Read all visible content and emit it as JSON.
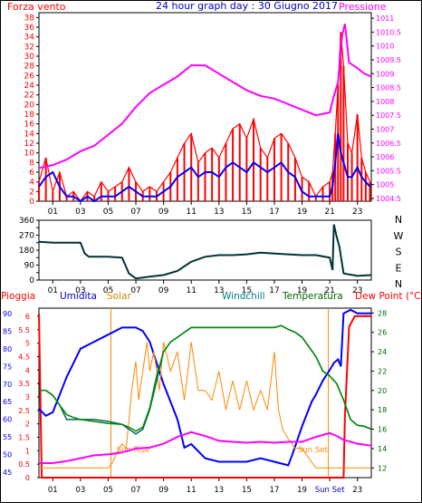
{
  "header": {
    "title": "24 hour graph day : 30 Giugno 2017",
    "left_label": "Forza vento",
    "right_label": "Pressione"
  },
  "colors": {
    "wind": "#ff0000",
    "gust": "#0000ff",
    "pressure": "#ff00ff",
    "direction": "#003333",
    "rain": "#ff0000",
    "humidity": "#0000ff",
    "solar": "#ff8800",
    "windchill": "#006666",
    "temperature": "#008800",
    "dewpoint": "#ff00ff",
    "humidity_label": "#0000cc",
    "solar_label": "#cc8800",
    "windchill_label": "#008080",
    "temperature_label": "#006600",
    "dewpoint_label": "#ff0000"
  },
  "chart_data": [
    {
      "type": "line",
      "name": "wind-pressure",
      "x_ticks": [
        "01",
        "03",
        "05",
        "07",
        "09",
        "11",
        "13",
        "15",
        "17",
        "19",
        "21",
        "23"
      ],
      "y_left_label": "Forza vento",
      "y_left_ticks": [
        0,
        2,
        4,
        6,
        8,
        10,
        12,
        14,
        16,
        18,
        20,
        22,
        24,
        26,
        28,
        30,
        32,
        34,
        36,
        38
      ],
      "y_left_lim": [
        0,
        39
      ],
      "y_right_label": "Pressione",
      "y_right_ticks": [
        1004.5,
        1005,
        1005.5,
        1006,
        1006.5,
        1007,
        1007.5,
        1008,
        1008.5,
        1009,
        1009.5,
        1010,
        1010.5,
        1011
      ],
      "y_right_lim": [
        1004.4,
        1011.2
      ],
      "series": [
        {
          "name": "Forza vento",
          "axis": "left",
          "x": [
            0,
            0.5,
            1,
            1.5,
            2,
            2.5,
            3,
            3.5,
            4,
            4.5,
            5,
            5.5,
            6,
            6.5,
            7,
            7.5,
            8,
            8.5,
            9,
            9.5,
            10,
            10.5,
            11,
            11.5,
            12,
            12.5,
            13,
            13.5,
            14,
            14.5,
            15,
            15.5,
            16,
            16.5,
            17,
            17.5,
            18,
            18.5,
            19,
            19.5,
            20,
            20.5,
            21,
            21.2,
            21.4,
            21.6,
            21.8,
            22,
            22.3,
            22.6,
            23,
            23.3,
            23.6,
            23.9
          ],
          "values": [
            4,
            9,
            2,
            6,
            1,
            2,
            0,
            2,
            1,
            4,
            2,
            3,
            4,
            7,
            4,
            2,
            3,
            2,
            4,
            6,
            9,
            12,
            14,
            8,
            10,
            11,
            9,
            12,
            15,
            16,
            13,
            17,
            11,
            9,
            13,
            14,
            12,
            9,
            5,
            4,
            1,
            3,
            4,
            6,
            14,
            24,
            35,
            28,
            12,
            10,
            18,
            9,
            6,
            4
          ]
        },
        {
          "name": "Raffica",
          "axis": "left",
          "x": [
            0,
            0.5,
            1,
            1.5,
            2,
            2.5,
            3,
            3.5,
            4,
            4.5,
            5,
            5.5,
            6,
            6.5,
            7,
            7.5,
            8,
            8.5,
            9,
            9.5,
            10,
            10.5,
            11,
            11.5,
            12,
            12.5,
            13,
            13.5,
            14,
            14.5,
            15,
            15.5,
            16,
            16.5,
            17,
            17.5,
            18,
            18.5,
            19,
            19.5,
            20,
            20.5,
            21,
            21.2,
            21.4,
            21.6,
            21.8,
            22,
            22.3,
            22.6,
            23,
            23.3,
            23.6,
            23.9
          ],
          "values": [
            3,
            5,
            6,
            3,
            1,
            1,
            0,
            1,
            0,
            1,
            1,
            1,
            2,
            3,
            2,
            1,
            1,
            1,
            2,
            3,
            5,
            6,
            7,
            5,
            6,
            6,
            5,
            7,
            8,
            7,
            6,
            8,
            7,
            6,
            7,
            8,
            6,
            5,
            2,
            1,
            1,
            1,
            1,
            3,
            8,
            14,
            10,
            8,
            5,
            5,
            7,
            5,
            4,
            3
          ]
        },
        {
          "name": "Pressione",
          "axis": "right",
          "x": [
            0,
            1,
            2,
            3,
            4,
            5,
            6,
            7,
            8,
            9,
            10,
            11,
            12,
            13,
            14,
            15,
            16,
            17,
            18,
            19,
            20,
            21,
            21.3,
            21.6,
            21.9,
            22.1,
            22.4,
            23,
            23.5,
            24
          ],
          "values": [
            1005.6,
            1005.7,
            1005.9,
            1006.2,
            1006.4,
            1006.8,
            1007.2,
            1007.8,
            1008.3,
            1008.6,
            1008.9,
            1009.3,
            1009.3,
            1009.0,
            1008.7,
            1008.4,
            1008.2,
            1008.1,
            1007.9,
            1007.7,
            1007.5,
            1007.6,
            1008.2,
            1008.7,
            1010.4,
            1010.8,
            1009.4,
            1009.2,
            1009.0,
            1008.9
          ]
        }
      ]
    },
    {
      "type": "line",
      "name": "wind-direction",
      "x_ticks": [
        "01",
        "03",
        "05",
        "07",
        "09",
        "11",
        "13",
        "15",
        "17",
        "19",
        "21",
        "23"
      ],
      "y_left_ticks": [
        0,
        45,
        90,
        135,
        180,
        225,
        270,
        315,
        360
      ],
      "y_left_lim": [
        0,
        360
      ],
      "y_right_ticks": [
        "N",
        "W",
        "S",
        "E",
        "N"
      ],
      "series": [
        {
          "name": "Direzione",
          "x": [
            0,
            1,
            2,
            3,
            3.3,
            3.6,
            4,
            5,
            6,
            6.5,
            7,
            7.5,
            8,
            9,
            10,
            11,
            12,
            13,
            14,
            15,
            16,
            17,
            18,
            19,
            20,
            21,
            21.2,
            21.3,
            21.5,
            21.7,
            22,
            23,
            24
          ],
          "values": [
            230,
            225,
            225,
            225,
            160,
            140,
            140,
            140,
            135,
            40,
            10,
            15,
            20,
            30,
            55,
            110,
            140,
            150,
            150,
            155,
            165,
            160,
            155,
            150,
            150,
            135,
            60,
            335,
            260,
            200,
            40,
            25,
            30
          ]
        }
      ]
    },
    {
      "type": "line",
      "name": "rain-humidity-temperature",
      "x_ticks": [
        "01",
        "03",
        "05",
        "07",
        "09",
        "11",
        "13",
        "15",
        "17",
        "19",
        "Sun Set",
        "23"
      ],
      "annotations": [
        "Sun Rise",
        "Sun Set"
      ],
      "y_rain_label": "Pioggia",
      "y_rain_ticks": [
        0,
        0.5,
        1,
        1.5,
        2,
        2.5,
        3,
        3.5,
        4,
        4.5,
        5,
        5.5,
        6
      ],
      "y_hum_label": "Umidita",
      "y_hum_ticks": [
        45,
        50,
        55,
        60,
        65,
        70,
        75,
        80,
        85,
        90
      ],
      "y_temp_label": "Temperatura",
      "y_temp_ticks": [
        12,
        14,
        16,
        18,
        20,
        22,
        24,
        26,
        28
      ],
      "legend": [
        "Pioggia",
        "Umidita",
        "Solar",
        "Windchill",
        "Temperatura",
        "Dew Point (°C)"
      ],
      "series": [
        {
          "name": "Pioggia",
          "axis": "rain",
          "x": [
            0,
            0.2,
            1.2,
            2,
            4,
            6,
            8,
            10,
            12,
            14,
            16,
            18,
            20,
            21.5,
            22,
            22.1,
            22.4,
            22.8,
            23,
            24
          ],
          "values": [
            6.1,
            0,
            0,
            0,
            0,
            0,
            0,
            0,
            0,
            0,
            0,
            0,
            0,
            0,
            0,
            2.3,
            5.6,
            6.0,
            6.0,
            6.0
          ]
        },
        {
          "name": "Umidita",
          "axis": "hum",
          "x": [
            0,
            0.5,
            1,
            2,
            3,
            4,
            5,
            6,
            7,
            7.5,
            8,
            9,
            9.5,
            10,
            10.5,
            11,
            12,
            13,
            14,
            15,
            16,
            17,
            18,
            18.3,
            19,
            19.7,
            20,
            20.5,
            21,
            21.3,
            21.6,
            21.8,
            22,
            22.5,
            23,
            24
          ],
          "values": [
            63,
            61,
            62,
            72,
            80,
            82,
            84,
            86,
            86,
            85,
            82,
            70,
            65,
            60,
            52,
            53,
            49,
            48,
            48,
            48,
            49,
            48,
            47,
            50,
            58,
            65,
            67,
            71,
            74,
            76,
            77,
            75,
            90,
            91,
            90,
            90
          ]
        },
        {
          "name": "Solar",
          "axis": "temp",
          "x": [
            0,
            5,
            5.3,
            5.6,
            6,
            6.3,
            6.7,
            7,
            7.2,
            7.5,
            7.8,
            8,
            8.3,
            8.7,
            9,
            9.5,
            10,
            10.5,
            11,
            11.5,
            12,
            12.5,
            13,
            13.5,
            14,
            14.5,
            15,
            15.5,
            16,
            16.5,
            17,
            17.3,
            17.6,
            18,
            18.5,
            19,
            20,
            24
          ],
          "values": [
            12,
            12,
            12.5,
            13.5,
            14.5,
            14,
            20,
            23,
            19,
            22,
            25,
            22,
            24,
            20,
            25,
            22,
            24,
            19,
            25,
            20,
            20,
            19,
            22,
            18,
            21,
            18,
            21,
            18,
            20,
            18,
            24,
            18,
            16,
            15,
            14,
            14,
            12,
            12
          ]
        },
        {
          "name": "Windchill",
          "axis": "temp",
          "x": [
            0,
            0.5,
            1,
            1.5,
            2,
            2.5,
            3,
            4,
            5,
            6,
            6.5,
            7,
            7.5,
            8,
            8.5,
            9,
            9.5,
            10,
            11,
            12,
            13,
            14,
            15,
            16,
            17,
            17.5,
            18,
            18.5,
            19,
            19.5,
            20,
            20.5,
            21,
            21.5,
            22,
            22.5,
            23,
            23.5,
            24
          ],
          "values": [
            20,
            20,
            19.5,
            18.5,
            17,
            17,
            17,
            17,
            16.8,
            16.5,
            16,
            15.5,
            16,
            18,
            21,
            24,
            25,
            25.5,
            26.5,
            26.5,
            26.5,
            26.5,
            26.5,
            26.5,
            26.5,
            26.7,
            26.3,
            26,
            25.5,
            24.5,
            23.5,
            22,
            21.5,
            20.7,
            19,
            17,
            16.4,
            16.3,
            16
          ]
        },
        {
          "name": "Temperatura",
          "axis": "temp",
          "x": [
            0,
            0.5,
            1,
            1.5,
            2,
            2.5,
            3,
            4,
            5,
            6,
            6.5,
            7,
            7.5,
            8,
            8.5,
            9,
            9.5,
            10,
            11,
            12,
            13,
            14,
            15,
            16,
            17,
            17.5,
            18,
            18.5,
            19,
            19.5,
            20,
            20.5,
            21,
            21.5,
            22,
            22.5,
            23,
            23.5,
            24
          ],
          "values": [
            20,
            20,
            19.5,
            18.5,
            17.5,
            17.2,
            17,
            16.8,
            16.6,
            16.5,
            16.2,
            15.8,
            16.2,
            18.2,
            21.5,
            24,
            25,
            25.5,
            26.5,
            26.5,
            26.5,
            26.5,
            26.5,
            26.5,
            26.5,
            26.7,
            26.3,
            26,
            25.5,
            24.5,
            23.5,
            22,
            21.5,
            20.7,
            19,
            17,
            16.4,
            16.3,
            16
          ]
        },
        {
          "name": "Dew Point",
          "axis": "temp",
          "x": [
            0,
            1,
            2,
            3,
            4,
            5,
            6,
            7,
            8,
            9,
            10,
            11,
            12,
            13,
            14,
            15,
            16,
            17,
            18,
            19,
            20,
            21,
            21.5,
            22,
            23,
            24
          ],
          "values": [
            12.5,
            12.5,
            12.7,
            13,
            13.3,
            13.4,
            13.6,
            14,
            14.1,
            14.5,
            15.2,
            15.7,
            15.3,
            14.8,
            14.7,
            14.6,
            14.7,
            14.6,
            14.7,
            14.7,
            15.2,
            15.6,
            15.3,
            14.9,
            14.5,
            14.3
          ]
        }
      ]
    }
  ]
}
